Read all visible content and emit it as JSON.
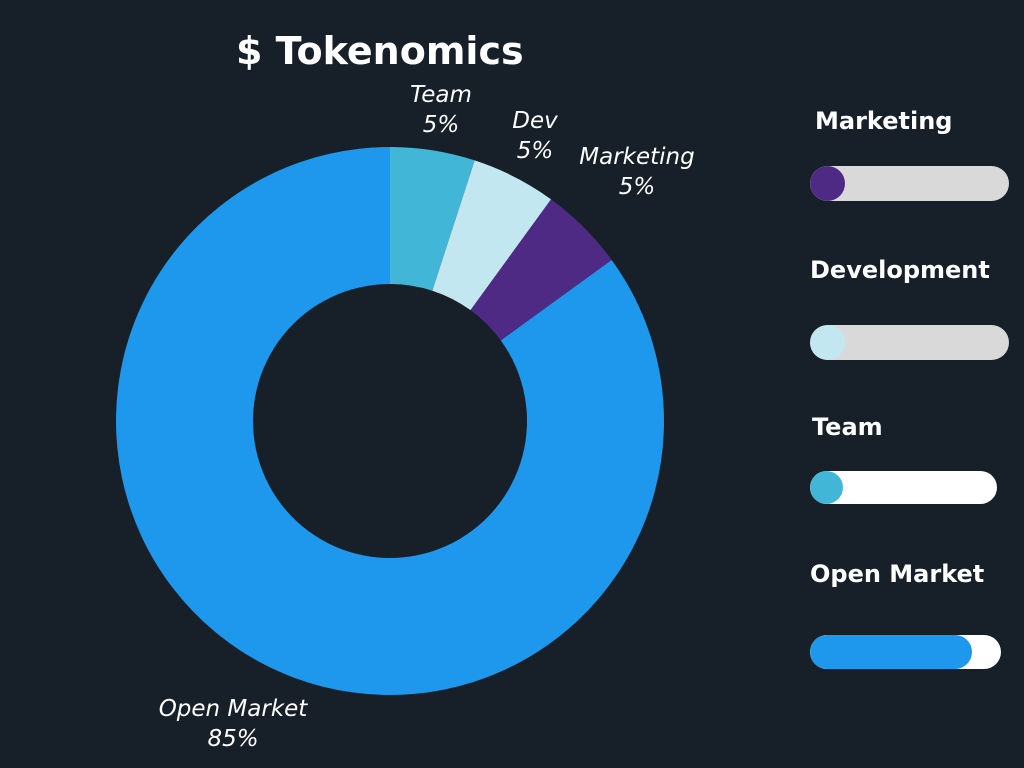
{
  "title": "$ Tokenomics",
  "chart_data": {
    "type": "pie",
    "donut": true,
    "slices": [
      {
        "label": "Team",
        "value": 5,
        "value_label": "5%",
        "color": "#41b6d6"
      },
      {
        "label": "Dev",
        "value": 5,
        "value_label": "5%",
        "color": "#c2e7f0"
      },
      {
        "label": "Marketing",
        "value": 5,
        "value_label": "5%",
        "color": "#4f2a85"
      },
      {
        "label": "Open Market",
        "value": 85,
        "value_label": "85%",
        "color": "#1e98ec"
      }
    ]
  },
  "legend": [
    {
      "name": "Marketing",
      "fraction": 0.05,
      "fill_color": "#4f2a85",
      "track_color": "#d9d9d9"
    },
    {
      "name": "Development",
      "fraction": 0.05,
      "fill_color": "#c2e7f0",
      "track_color": "#d9d9d9"
    },
    {
      "name": "Team",
      "fraction": 0.05,
      "fill_color": "#41b6d6",
      "track_color": "#ffffff"
    },
    {
      "name": "Open Market",
      "fraction": 0.85,
      "fill_color": "#1e98ec",
      "track_color": "#ffffff"
    }
  ]
}
